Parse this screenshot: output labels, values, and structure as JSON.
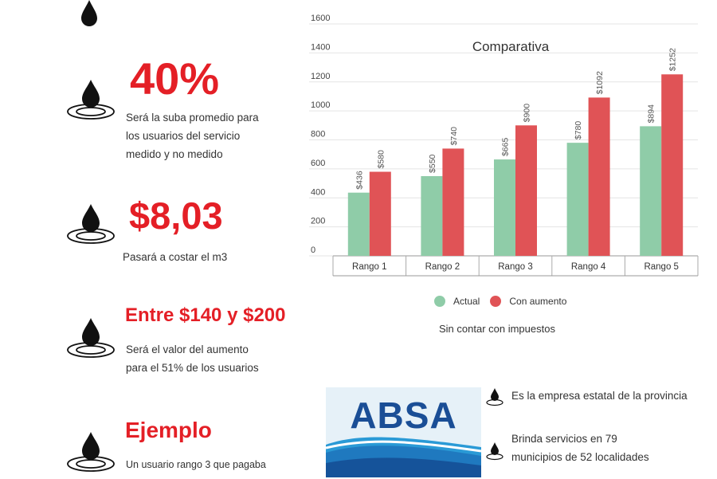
{
  "stats": [
    {
      "value": "40%",
      "desc": [
        "Será la suba promedio para",
        "los usuarios del servicio",
        "medido y no medido"
      ]
    },
    {
      "value": "$8,03",
      "desc": [
        "Pasará a costar el m3"
      ]
    },
    {
      "value": "Entre $140 y $200",
      "desc": [
        "Será el valor del aumento",
        "para el 51% de los usuarios"
      ]
    },
    {
      "value": "Ejemplo",
      "desc": [
        "Un usuario rango 3 que pagaba"
      ]
    }
  ],
  "colors": {
    "accent": "#e41f26",
    "actual": "#8fcca8",
    "con_aumento": "#e05356"
  },
  "chart_data": {
    "type": "bar",
    "title": "Comparativa",
    "categories": [
      "Rango 1",
      "Rango 2",
      "Rango 3",
      "Rango 4",
      "Rango 5"
    ],
    "series": [
      {
        "name": "Actual",
        "values": [
          436,
          550,
          665,
          780,
          894
        ],
        "labels": [
          "$436",
          "$550",
          "$665",
          "$780",
          "$894"
        ]
      },
      {
        "name": "Con aumento",
        "values": [
          580,
          740,
          900,
          1092,
          1252
        ],
        "labels": [
          "$580",
          "$740",
          "$900",
          "$1092",
          "$1252"
        ]
      }
    ],
    "yticks": [
      0,
      200,
      400,
      600,
      800,
      1000,
      1200,
      1400,
      1600
    ],
    "ylim": [
      0,
      1600
    ],
    "grid": true,
    "legend": "bottom"
  },
  "note": "Sin contar con impuestos",
  "logo": {
    "text": "ABSA"
  },
  "info": [
    {
      "lines": [
        "Es la empresa estatal de la provincia"
      ]
    },
    {
      "lines": [
        "Brinda servicios en 79",
        "municipios de 52 localidades"
      ]
    }
  ]
}
